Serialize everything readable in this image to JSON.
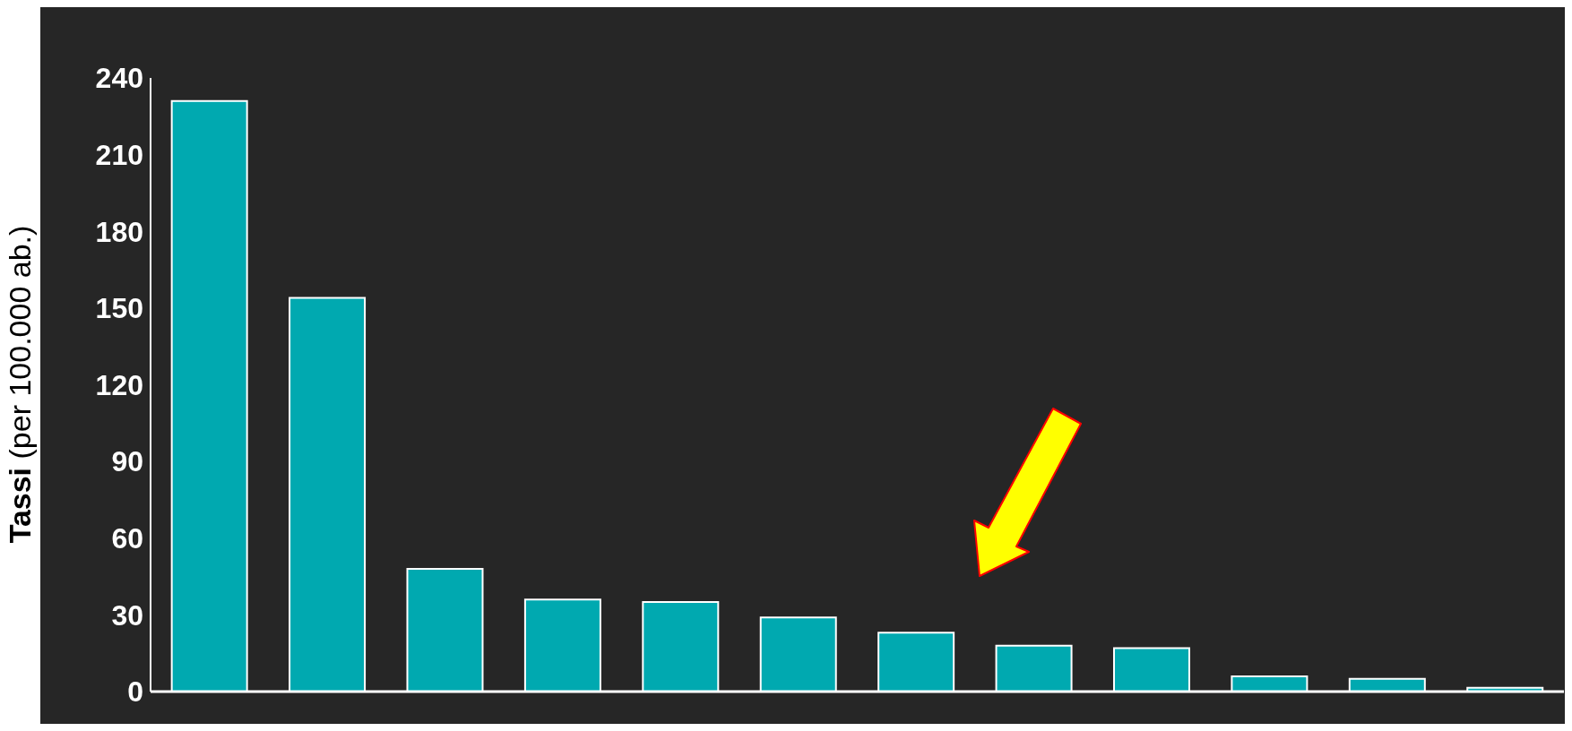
{
  "chart_data": {
    "type": "bar",
    "ylabel": "Tassi (per 100.000 ab.)",
    "categories": [
      null,
      null,
      null,
      null,
      null,
      null,
      null,
      null,
      null,
      null,
      null,
      null
    ],
    "values": [
      231,
      154,
      48,
      36,
      35,
      29,
      23,
      18,
      17,
      6,
      5,
      1.5
    ],
    "color": "#00a9b0",
    "ylim": [
      0,
      240
    ],
    "yticks": [
      0,
      30,
      60,
      90,
      120,
      150,
      180,
      210,
      240
    ],
    "grid": false,
    "legend": false
  }
}
